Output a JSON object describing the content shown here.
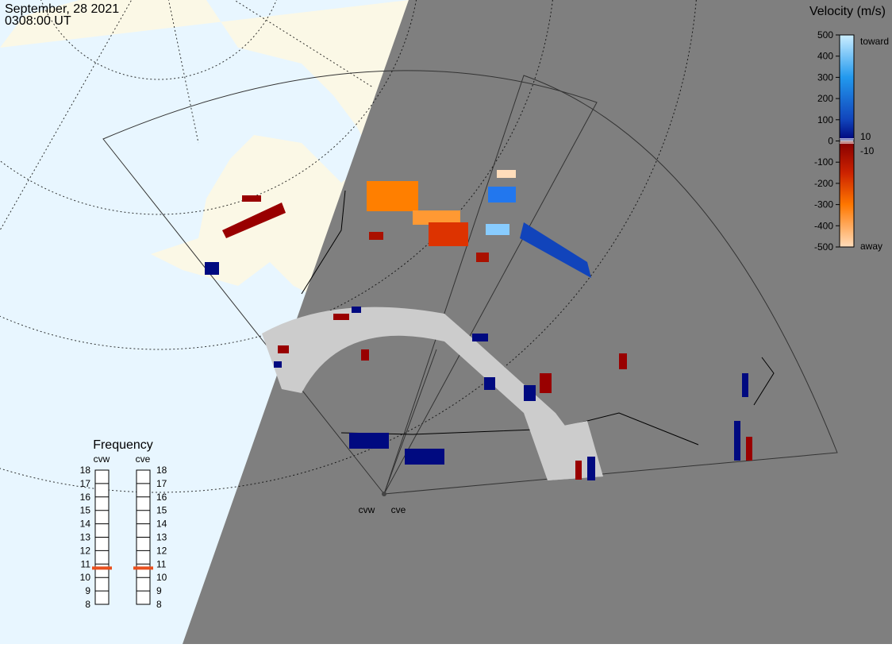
{
  "header": {
    "date": "September, 28 2021",
    "time": "0308:00 UT"
  },
  "colorbar": {
    "title": "Velocity (m/s)",
    "ticks": [
      500,
      400,
      300,
      200,
      100,
      0,
      -100,
      -200,
      -300,
      -400,
      -500
    ],
    "inner_ticks": [
      10,
      -10
    ],
    "toward": "toward",
    "away": "away",
    "range": [
      -500,
      500
    ]
  },
  "frequency": {
    "title": "Frequency",
    "ticks": [
      8,
      9,
      10,
      11,
      12,
      13,
      14,
      15,
      16,
      17,
      18
    ],
    "range": [
      8,
      18
    ],
    "radars": [
      {
        "name": "cvw",
        "value": 10.7
      },
      {
        "name": "cve",
        "value": 10.7
      }
    ]
  },
  "map_labels": [
    "cvw",
    "cve"
  ]
}
